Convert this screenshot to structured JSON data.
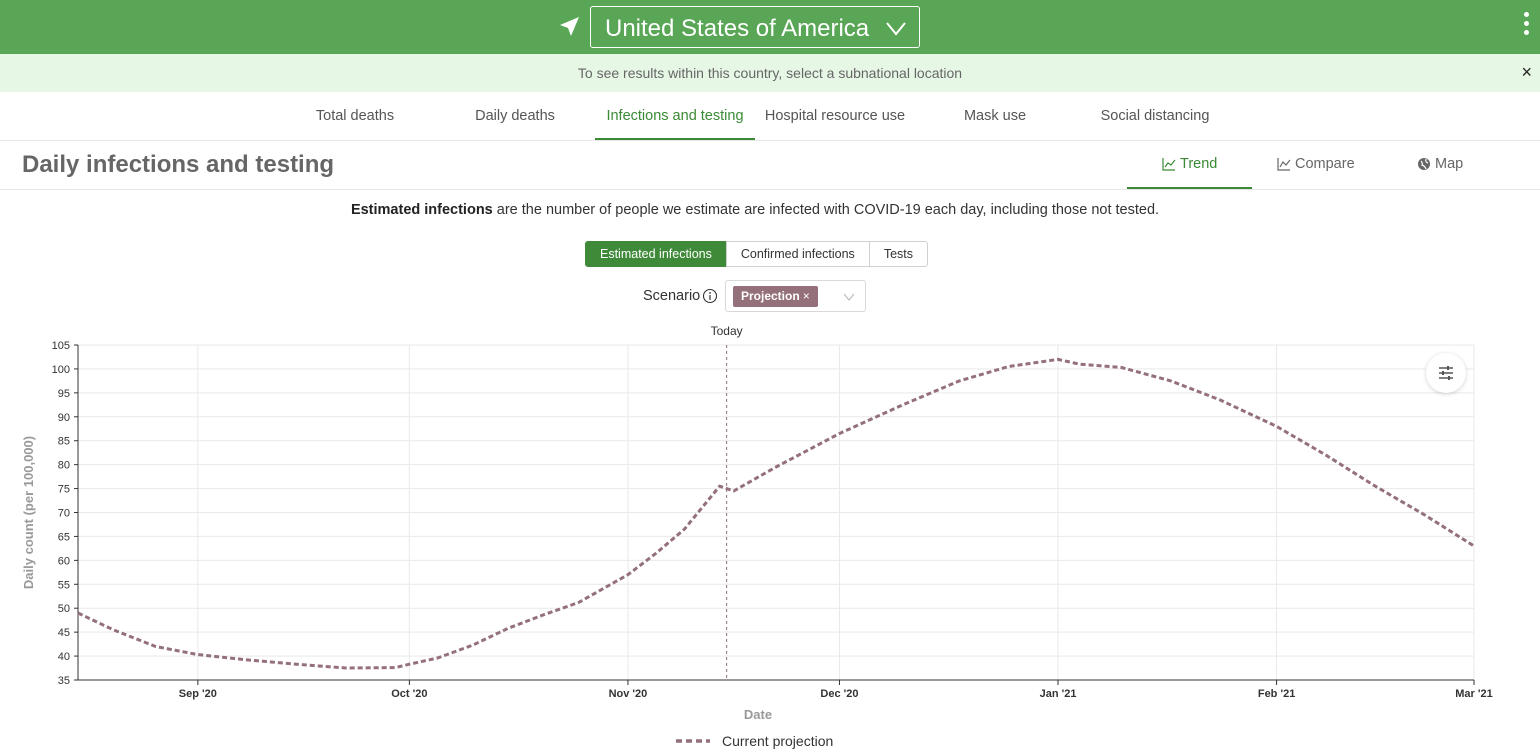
{
  "header": {
    "location": "United States of America",
    "notice": "To see results within this country, select a subnational location",
    "close_symbol": "×"
  },
  "main_tabs": [
    {
      "label": "Total deaths"
    },
    {
      "label": "Daily deaths"
    },
    {
      "label": "Infections and testing",
      "active": true
    },
    {
      "label": "Hospital resource use"
    },
    {
      "label": "Mask use"
    },
    {
      "label": "Social distancing"
    }
  ],
  "section": {
    "title": "Daily infections and testing",
    "view_tabs": [
      {
        "label": "Trend",
        "icon": "line-chart-icon",
        "active": true
      },
      {
        "label": "Compare",
        "icon": "area-chart-icon"
      },
      {
        "label": "Map",
        "icon": "globe-icon"
      }
    ],
    "desc_bold": "Estimated infections",
    "desc_rest": " are the number of people we estimate are infected with COVID-19 each day, including those not tested."
  },
  "metric_toggle": [
    "Estimated infections",
    "Confirmed infections",
    "Tests"
  ],
  "scenario": {
    "label": "Scenario",
    "selected": "Projection",
    "remove_symbol": "×"
  },
  "colors": {
    "brand_green": "#58a656",
    "active_green": "#3a8a35",
    "series_color": "#94707a"
  },
  "chart_data": {
    "type": "line",
    "ylabel": "Daily count (per 100,000)",
    "xlabel": "Date",
    "ylim": [
      35,
      105
    ],
    "yticks": [
      35,
      40,
      45,
      50,
      55,
      60,
      65,
      70,
      75,
      80,
      85,
      90,
      95,
      100,
      105
    ],
    "xlim": [
      "2020-08-15",
      "2021-03-01"
    ],
    "xticks": [
      {
        "date": "2020-09-01",
        "label": "Sep '20"
      },
      {
        "date": "2020-10-01",
        "label": "Oct '20"
      },
      {
        "date": "2020-11-01",
        "label": "Nov '20"
      },
      {
        "date": "2020-12-01",
        "label": "Dec '20"
      },
      {
        "date": "2021-01-01",
        "label": "Jan '21"
      },
      {
        "date": "2021-02-01",
        "label": "Feb '21"
      },
      {
        "date": "2021-03-01",
        "label": "Mar '21"
      }
    ],
    "today": {
      "date": "2020-11-15",
      "label": "Today"
    },
    "grid": true,
    "legend": "bottom",
    "series": [
      {
        "name": "Current projection",
        "style": "dashed",
        "points": [
          [
            "2020-08-15",
            49.0
          ],
          [
            "2020-08-20",
            45.5
          ],
          [
            "2020-08-26",
            42.0
          ],
          [
            "2020-09-01",
            40.3
          ],
          [
            "2020-09-08",
            39.2
          ],
          [
            "2020-09-15",
            38.3
          ],
          [
            "2020-09-22",
            37.5
          ],
          [
            "2020-09-29",
            37.6
          ],
          [
            "2020-10-01",
            38.3
          ],
          [
            "2020-10-05",
            39.6
          ],
          [
            "2020-10-10",
            42.3
          ],
          [
            "2020-10-15",
            45.8
          ],
          [
            "2020-10-20",
            48.6
          ],
          [
            "2020-10-25",
            51.2
          ],
          [
            "2020-11-01",
            57.0
          ],
          [
            "2020-11-05",
            61.5
          ],
          [
            "2020-11-09",
            66.5
          ],
          [
            "2020-11-14",
            75.5
          ],
          [
            "2020-11-16",
            74.5
          ],
          [
            "2020-11-22",
            79.5
          ],
          [
            "2020-12-01",
            86.5
          ],
          [
            "2020-12-10",
            92.5
          ],
          [
            "2020-12-18",
            97.5
          ],
          [
            "2020-12-25",
            100.5
          ],
          [
            "2021-01-01",
            102.0
          ],
          [
            "2021-01-04",
            101.0
          ],
          [
            "2021-01-10",
            100.3
          ],
          [
            "2021-01-17",
            97.5
          ],
          [
            "2021-01-24",
            93.5
          ],
          [
            "2021-02-01",
            88.0
          ],
          [
            "2021-02-08",
            82.0
          ],
          [
            "2021-02-15",
            75.5
          ],
          [
            "2021-02-22",
            69.5
          ],
          [
            "2021-03-01",
            63.0
          ]
        ]
      }
    ]
  }
}
